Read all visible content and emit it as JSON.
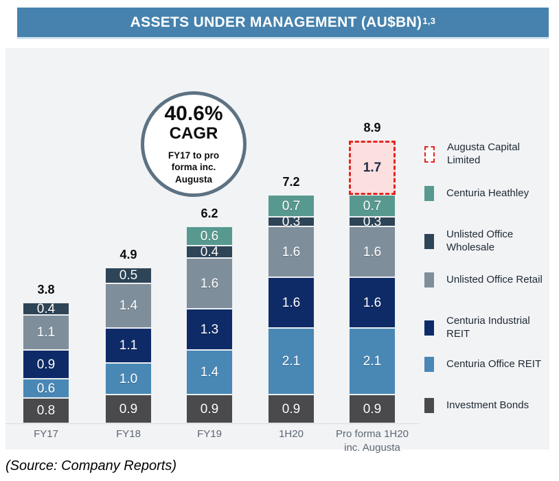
{
  "header": {
    "title": "ASSETS UNDER MANAGEMENT (AU$BN)",
    "superscript": "1,3",
    "banner_color": "#4682ad"
  },
  "cagr_badge": {
    "value": "40.6%",
    "label": "CAGR",
    "note": "FY17 to pro forma inc. Augusta"
  },
  "source_note": "(Source: Company Reports)",
  "chart_data": {
    "type": "bar",
    "stacked": true,
    "title": "ASSETS UNDER MANAGEMENT (AU$BN)",
    "unit": "AU$BN",
    "categories": [
      "FY17",
      "FY18",
      "FY19",
      "1H20",
      "Pro forma 1H20\ninc. Augusta"
    ],
    "totals": [
      3.8,
      4.9,
      6.2,
      7.2,
      8.9
    ],
    "series_bottom_to_top": [
      {
        "name": "Investment Bonds",
        "color": "#4a4a4c",
        "values": [
          0.8,
          0.9,
          0.9,
          0.9,
          0.9
        ]
      },
      {
        "name": "Centuria Office REIT",
        "color": "#4987b5",
        "values": [
          0.6,
          1.0,
          1.4,
          2.1,
          2.1
        ]
      },
      {
        "name": "Centuria Industrial REIT",
        "color": "#0e2b68",
        "values": [
          0.9,
          1.1,
          1.3,
          1.6,
          1.6
        ]
      },
      {
        "name": "Unlisted Office Retail",
        "color": "#7f8e9b",
        "values": [
          1.1,
          1.4,
          1.6,
          1.6,
          1.6
        ]
      },
      {
        "name": "Unlisted Office Wholesale",
        "color": "#2e4457",
        "values": [
          0.4,
          0.5,
          0.4,
          0.3,
          0.3
        ]
      },
      {
        "name": "Centuria Heathley",
        "color": "#58998f",
        "values": [
          null,
          null,
          0.6,
          0.7,
          0.7
        ]
      },
      {
        "name": "Augusta Capital Limited",
        "color": "#fcdfdf",
        "border_color": "#e3251f",
        "dashed": true,
        "text_color": "#1f2c45",
        "values": [
          null,
          null,
          null,
          null,
          1.7
        ]
      }
    ],
    "legend": [
      {
        "label": "Augusta Capital Limited",
        "color": "#ffffff",
        "dashed": true
      },
      {
        "label": "Centuria Heathley",
        "color": "#58998f"
      },
      {
        "label": "Unlisted Office\nWholesale",
        "color": "#2e4457"
      },
      {
        "label": "Unlisted Office Retail",
        "color": "#7f8e9b"
      },
      {
        "label": "Centuria Industrial REIT",
        "color": "#0e2b68"
      },
      {
        "label": "Centuria Office REIT",
        "color": "#4987b5"
      },
      {
        "label": "Investment Bonds",
        "color": "#4a4a4c"
      }
    ],
    "annotation": "40.6% CAGR FY17 to pro forma inc. Augusta",
    "ylim": [
      0,
      9.5
    ],
    "grid": false,
    "legend_position": "right"
  }
}
